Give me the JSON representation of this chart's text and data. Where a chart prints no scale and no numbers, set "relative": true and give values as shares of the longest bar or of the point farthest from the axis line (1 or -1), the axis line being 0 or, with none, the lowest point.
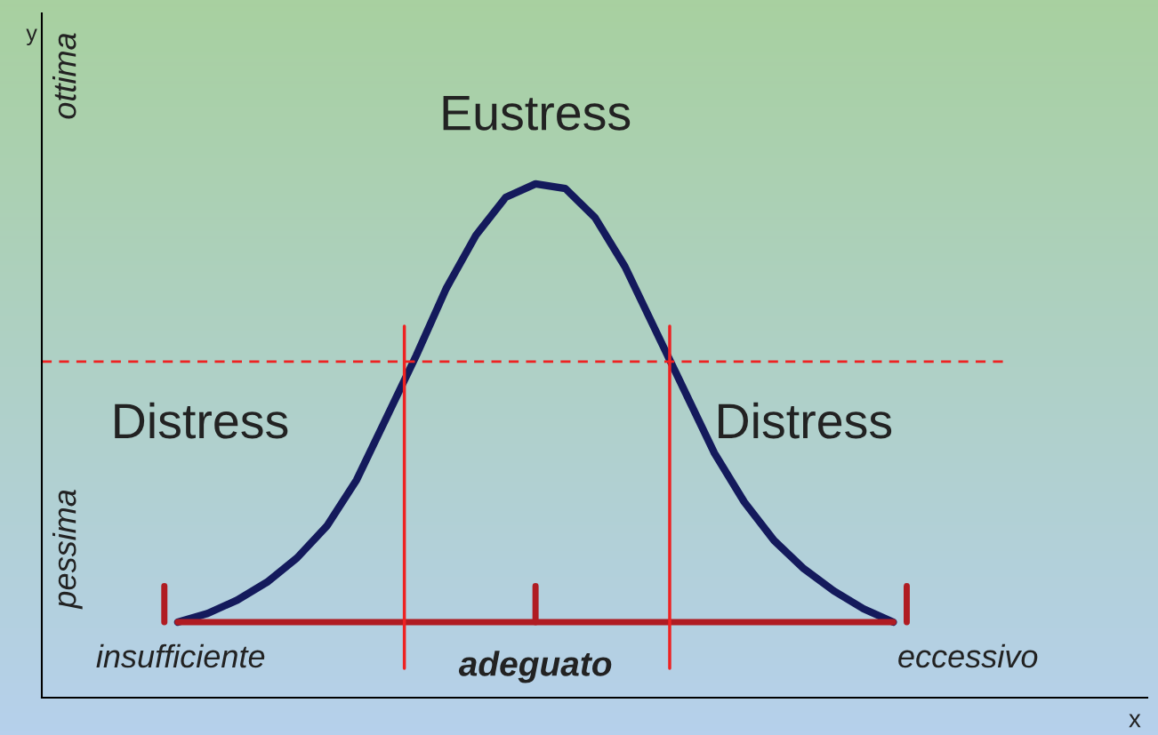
{
  "chart_data": {
    "type": "line",
    "relative": true,
    "categories": [
      null,
      null,
      null,
      null,
      null,
      null,
      null,
      null,
      null,
      null,
      null,
      null,
      null,
      null,
      null,
      null,
      null,
      null,
      null,
      null,
      null,
      null,
      null,
      null,
      null
    ],
    "series": [
      {
        "color": "#141a5c",
        "values": [
          0.147,
          0.164,
          0.19,
          0.225,
          0.272,
          0.334,
          0.424,
          0.545,
          0.666,
          0.796,
          0.9,
          0.974,
          1,
          0.991,
          0.934,
          0.839,
          0.718,
          0.597,
          0.476,
          0.381,
          0.306,
          0.251,
          0.208,
          0.173,
          0.147
        ]
      }
    ],
    "annotations": [
      "Eustress",
      "Distress",
      "Distress",
      "ottima",
      "pessima",
      "insufficiente",
      "adeguato",
      "eccessivo",
      "x",
      "y"
    ],
    "ref_lines": [
      {
        "axis": "y",
        "value": 0.654,
        "color": "#ee2222",
        "line_style": "dashed"
      },
      {
        "axis": "y",
        "value": 0.147,
        "color": "#b01c22"
      }
    ],
    "legend": false
  }
}
